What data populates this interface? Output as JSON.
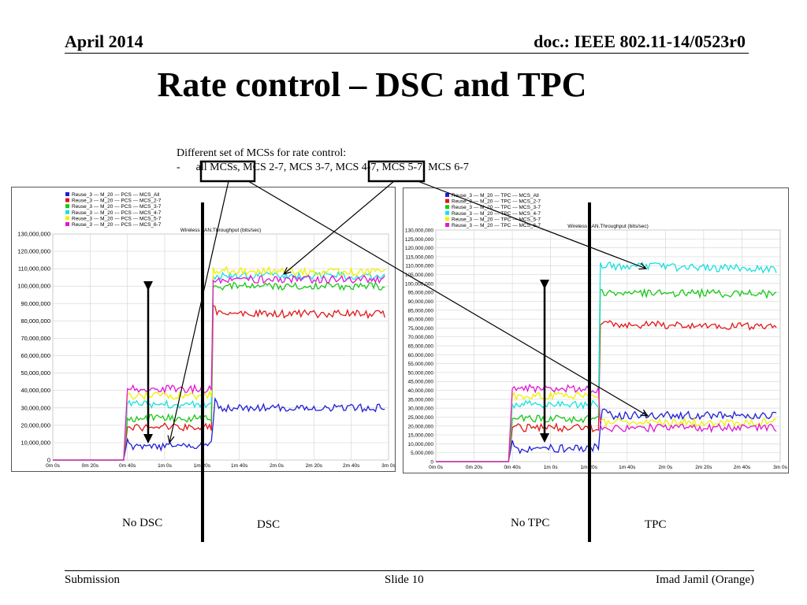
{
  "header": {
    "date": "April 2014",
    "doc": "doc.: IEEE 802.11-14/0523r0"
  },
  "title": "Rate control – DSC and TPC",
  "description": {
    "line1": "Different set of MCSs for rate control:",
    "bullet": "-",
    "line2": "all MCSs, MCS 2-7, MCS 3-7, MCS 4-7, MCS 5-7, MCS 6-7"
  },
  "captions": {
    "no_dsc": "No DSC",
    "dsc": "DSC",
    "no_tpc": "No TPC",
    "tpc": "TPC"
  },
  "footer": {
    "left": "Submission",
    "middle": "Slide 10",
    "right": "Imad Jamil (Orange)"
  },
  "colors": {
    "MCS_All": "#1f1fd8",
    "MCS_2-7": "#e01818",
    "MCS_3-7": "#18c818",
    "MCS_4-7": "#18e0e0",
    "MCS_5-7": "#f0f000",
    "MCS_6-7": "#e018d0"
  },
  "chart_data": [
    {
      "type": "line",
      "title": "Wireless LAN.Throughput (bits/sec)",
      "xlabel": "",
      "ylabel": "",
      "x_ticks": [
        "0m 0s",
        "0m 20s",
        "0m 40s",
        "1m 0s",
        "1m 20s",
        "1m 40s",
        "2m 0s",
        "2m 20s",
        "2m 40s",
        "3m 0s"
      ],
      "xlim": [
        0,
        180
      ],
      "y_ticks": [
        "0",
        "10,000,000",
        "20,000,000",
        "30,000,000",
        "40,000,000",
        "50,000,000",
        "60,000,000",
        "70,000,000",
        "80,000,000",
        "90,000,000",
        "100,000,000",
        "110,000,000",
        "120,000,000",
        "130,000,000"
      ],
      "ylim": [
        0,
        130000000
      ],
      "grid": true,
      "legend_position": "top-left",
      "series": [
        {
          "name": "Reuse_3 --- M_20 --- PCS --- MCS_All",
          "key": "MCS_All",
          "levels": [
            [
              0,
              0
            ],
            [
              38,
              0
            ],
            [
              40,
              12000000
            ],
            [
              43,
              7000000
            ],
            [
              85,
              9000000
            ],
            [
              87,
              35000000
            ],
            [
              90,
              30000000
            ],
            [
              178,
              30000000
            ]
          ]
        },
        {
          "name": "Reuse_3 --- M_20 --- PCS --- MCS_2-7",
          "key": "MCS_2-7",
          "levels": [
            [
              0,
              0
            ],
            [
              38,
              0
            ],
            [
              40,
              19000000
            ],
            [
              85,
              19000000
            ],
            [
              86,
              90000000
            ],
            [
              88,
              84000000
            ],
            [
              178,
              84000000
            ]
          ]
        },
        {
          "name": "Reuse_3 --- M_20 --- PCS --- MCS_3-7",
          "key": "MCS_3-7",
          "levels": [
            [
              0,
              0
            ],
            [
              38,
              0
            ],
            [
              40,
              24000000
            ],
            [
              85,
              24000000
            ],
            [
              86,
              100000000
            ],
            [
              178,
              100000000
            ]
          ]
        },
        {
          "name": "Reuse_3 --- M_20 --- PCS --- MCS_4-7",
          "key": "MCS_4-7",
          "levels": [
            [
              0,
              0
            ],
            [
              38,
              0
            ],
            [
              40,
              32000000
            ],
            [
              85,
              32000000
            ],
            [
              86,
              106000000
            ],
            [
              178,
              106000000
            ]
          ]
        },
        {
          "name": "Reuse_3 --- M_20 --- PCS --- MCS_5-7",
          "key": "MCS_5-7",
          "levels": [
            [
              0,
              0
            ],
            [
              38,
              0
            ],
            [
              40,
              37000000
            ],
            [
              85,
              37000000
            ],
            [
              86,
              109000000
            ],
            [
              178,
              108000000
            ]
          ]
        },
        {
          "name": "Reuse_3 --- M_20 --- PCS --- MCS_6-7",
          "key": "MCS_6-7",
          "levels": [
            [
              0,
              0
            ],
            [
              38,
              0
            ],
            [
              40,
              41000000
            ],
            [
              85,
              41000000
            ],
            [
              86,
              104000000
            ],
            [
              178,
              104000000
            ]
          ]
        }
      ]
    },
    {
      "type": "line",
      "title": "Wireless LAN.Throughput (bits/sec)",
      "xlabel": "",
      "ylabel": "",
      "x_ticks": [
        "0m 0s",
        "0m 20s",
        "0m 40s",
        "1m 0s",
        "1m 20s",
        "1m 40s",
        "2m 0s",
        "2m 20s",
        "2m 40s",
        "3m 0s"
      ],
      "xlim": [
        0,
        180
      ],
      "y_ticks": [
        "0",
        "5,000,000",
        "10,000,000",
        "15,000,000",
        "20,000,000",
        "25,000,000",
        "30,000,000",
        "35,000,000",
        "40,000,000",
        "45,000,000",
        "50,000,000",
        "55,000,000",
        "60,000,000",
        "65,000,000",
        "70,000,000",
        "75,000,000",
        "80,000,000",
        "85,000,000",
        "90,000,000",
        "95,000,000",
        "100,000,000",
        "105,000,000",
        "110,000,000",
        "115,000,000",
        "120,000,000",
        "125,000,000",
        "130,000,000"
      ],
      "ylim": [
        0,
        130000000
      ],
      "grid": true,
      "legend_position": "top-left",
      "series": [
        {
          "name": "Reuse_3 --- M_20 --- TPC --- MCS_All",
          "key": "MCS_All",
          "levels": [
            [
              0,
              0
            ],
            [
              38,
              0
            ],
            [
              40,
              12000000
            ],
            [
              43,
              7000000
            ],
            [
              85,
              8000000
            ],
            [
              87,
              30000000
            ],
            [
              90,
              26000000
            ],
            [
              178,
              26000000
            ]
          ]
        },
        {
          "name": "Reuse_3 --- M_20 --- TPC --- MCS_2-7",
          "key": "MCS_2-7",
          "levels": [
            [
              0,
              0
            ],
            [
              38,
              0
            ],
            [
              40,
              19000000
            ],
            [
              85,
              19000000
            ],
            [
              86,
              77000000
            ],
            [
              178,
              76000000
            ]
          ]
        },
        {
          "name": "Reuse_3 --- M_20 --- TPC --- MCS_3-7",
          "key": "MCS_3-7",
          "levels": [
            [
              0,
              0
            ],
            [
              38,
              0
            ],
            [
              40,
              24000000
            ],
            [
              85,
              24000000
            ],
            [
              86,
              95000000
            ],
            [
              178,
              94000000
            ]
          ]
        },
        {
          "name": "Reuse_3 --- M_20 --- TPC --- MCS_4-7",
          "key": "MCS_4-7",
          "levels": [
            [
              0,
              0
            ],
            [
              38,
              0
            ],
            [
              40,
              32000000
            ],
            [
              85,
              32000000
            ],
            [
              86,
              110000000
            ],
            [
              178,
              108000000
            ]
          ]
        },
        {
          "name": "Reuse_3 --- M_20 --- TPC --- MCS_5-7",
          "key": "MCS_5-7",
          "levels": [
            [
              0,
              0
            ],
            [
              38,
              0
            ],
            [
              40,
              37000000
            ],
            [
              85,
              37000000
            ],
            [
              86,
              22000000
            ],
            [
              178,
              22000000
            ]
          ]
        },
        {
          "name": "Reuse_3 --- M_20 --- TPC --- MCS_6-7",
          "key": "MCS_6-7",
          "levels": [
            [
              0,
              0
            ],
            [
              38,
              0
            ],
            [
              40,
              41000000
            ],
            [
              85,
              41000000
            ],
            [
              86,
              19000000
            ],
            [
              178,
              19000000
            ]
          ]
        }
      ]
    }
  ]
}
